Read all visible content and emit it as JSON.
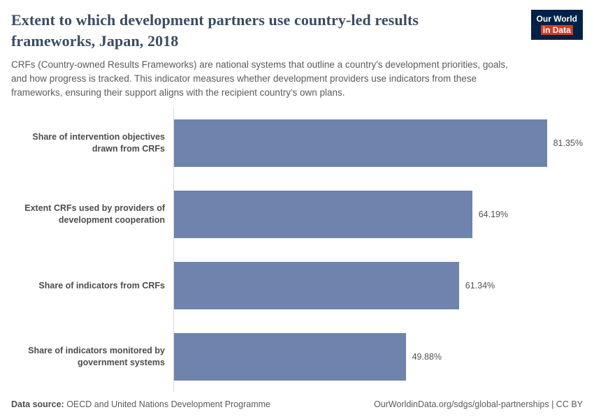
{
  "header": {
    "title": "Extent to which development partners use country-led results frameworks, Japan, 2018",
    "subtitle": "CRFs (Country-owned Results Frameworks) are national systems that outline a country's development priorities, goals, and how progress is tracked. This indicator measures whether development providers use indicators from these frameworks, ensuring their support aligns with the recipient country's own plans.",
    "logo": {
      "line1": "Our World",
      "line2": "in Data",
      "bg": "#002147",
      "accent": "#d13d27"
    }
  },
  "chart_data": {
    "type": "bar",
    "orientation": "horizontal",
    "title": "Extent to which development partners use country-led results frameworks, Japan, 2018",
    "categories": [
      "Share of intervention objectives drawn from CRFs",
      "Extent CRFs used by providers of development cooperation",
      "Share of indicators from CRFs",
      "Share of indicators monitored by government systems"
    ],
    "values": [
      81.35,
      64.19,
      61.34,
      49.88
    ],
    "value_labels": [
      "81.35%",
      "64.19%",
      "61.34%",
      "49.88%"
    ],
    "bar_color": "#6e84ad",
    "xlabel": "",
    "ylabel": "",
    "xlim": [
      0,
      88
    ],
    "grid": false,
    "legend": false
  },
  "footer": {
    "source_label": "Data source:",
    "source_text": " OECD and United Nations Development Programme",
    "right_text": "OurWorldinData.org/sdgs/global-partnerships | CC BY"
  }
}
